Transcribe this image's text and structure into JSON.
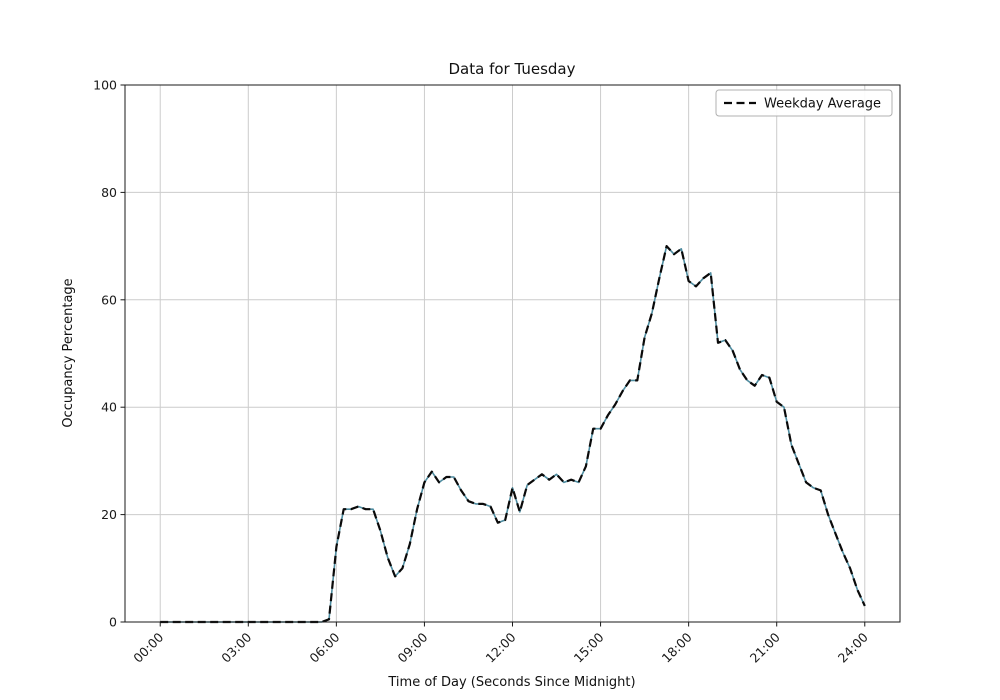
{
  "chart_data": {
    "type": "line",
    "title": "Data for Tuesday",
    "xlabel": "Time of Day (Seconds Since Midnight)",
    "ylabel": "Occupancy Percentage",
    "xlim_hours": [
      -1.2,
      25.2
    ],
    "ylim": [
      0,
      100
    ],
    "grid": true,
    "grid_color": "#cccccc",
    "x_ticks": [
      {
        "hours": 0,
        "label": "00:00"
      },
      {
        "hours": 3,
        "label": "03:00"
      },
      {
        "hours": 6,
        "label": "06:00"
      },
      {
        "hours": 9,
        "label": "09:00"
      },
      {
        "hours": 12,
        "label": "12:00"
      },
      {
        "hours": 15,
        "label": "15:00"
      },
      {
        "hours": 18,
        "label": "18:00"
      },
      {
        "hours": 21,
        "label": "21:00"
      },
      {
        "hours": 24,
        "label": "24:00"
      }
    ],
    "y_ticks": [
      0,
      20,
      40,
      60,
      80,
      100
    ],
    "x_hours": [
      0,
      0.25,
      0.5,
      0.75,
      1,
      1.25,
      1.5,
      1.75,
      2,
      2.25,
      2.5,
      2.75,
      3,
      3.25,
      3.5,
      3.75,
      4,
      4.25,
      4.5,
      4.75,
      5,
      5.25,
      5.5,
      5.75,
      6,
      6.25,
      6.5,
      6.75,
      7,
      7.25,
      7.5,
      7.75,
      8,
      8.25,
      8.5,
      8.75,
      9,
      9.25,
      9.5,
      9.75,
      10,
      10.25,
      10.5,
      10.75,
      11,
      11.25,
      11.5,
      11.75,
      12,
      12.25,
      12.5,
      12.75,
      13,
      13.25,
      13.5,
      13.75,
      14,
      14.25,
      14.5,
      14.75,
      15,
      15.25,
      15.5,
      15.75,
      16,
      16.25,
      16.5,
      16.75,
      17,
      17.25,
      17.5,
      17.75,
      18,
      18.25,
      18.5,
      18.75,
      19,
      19.25,
      19.5,
      19.75,
      20,
      20.25,
      20.5,
      20.75,
      21,
      21.25,
      21.5,
      21.75,
      22,
      22.25,
      22.5,
      22.75,
      23,
      23.25,
      23.5,
      23.75,
      24
    ],
    "series": [
      {
        "name": "Tuesday",
        "style": "solid",
        "color": "#4e8ca0",
        "width": 1.6,
        "values": [
          0,
          0,
          0,
          0,
          0,
          0,
          0,
          0,
          0,
          0,
          0,
          0,
          0,
          0,
          0,
          0,
          0,
          0,
          0,
          0,
          0,
          0,
          0,
          0.5,
          14,
          21,
          21,
          21.5,
          21,
          21,
          17,
          12,
          8.5,
          10,
          14.5,
          21,
          26,
          28,
          26,
          27,
          27,
          24.5,
          22.5,
          22,
          22,
          21.5,
          18.5,
          19,
          25,
          20.5,
          25.5,
          26.5,
          27.5,
          26.5,
          27.5,
          26,
          26.5,
          26,
          29,
          36,
          36,
          38.5,
          40.5,
          43,
          45,
          45,
          53,
          57.5,
          64,
          70,
          68.5,
          69.5,
          63.5,
          62.5,
          64,
          65,
          52,
          52.5,
          50.5,
          47,
          45,
          44,
          46,
          45.5,
          41,
          40,
          33,
          29.5,
          26,
          25,
          24.5,
          20,
          16.5,
          13,
          10,
          6,
          3
        ]
      },
      {
        "name": "Weekday Average",
        "style": "dashed",
        "color": "#0a0a0a",
        "width": 2.2,
        "values": [
          0,
          0,
          0,
          0,
          0,
          0,
          0,
          0,
          0,
          0,
          0,
          0,
          0,
          0,
          0,
          0,
          0,
          0,
          0,
          0,
          0,
          0,
          0,
          0.5,
          14,
          21,
          21,
          21.5,
          21,
          21,
          17,
          12,
          8.5,
          10,
          14.5,
          21,
          26,
          28,
          26,
          27,
          27,
          24.5,
          22.5,
          22,
          22,
          21.5,
          18.5,
          19,
          25,
          20.5,
          25.5,
          26.5,
          27.5,
          26.5,
          27.5,
          26,
          26.5,
          26,
          29,
          36,
          36,
          38.5,
          40.5,
          43,
          45,
          45,
          53,
          57.5,
          64,
          70,
          68.5,
          69.5,
          63.5,
          62.5,
          64,
          65,
          52,
          52.5,
          50.5,
          47,
          45,
          44,
          46,
          45.5,
          41,
          40,
          33,
          29.5,
          26,
          25,
          24.5,
          20,
          16.5,
          13,
          10,
          6,
          3
        ]
      }
    ],
    "legend": {
      "position": "upper right",
      "entries": [
        {
          "label": "Weekday Average",
          "style": "dashed",
          "color": "#0a0a0a"
        }
      ]
    }
  }
}
